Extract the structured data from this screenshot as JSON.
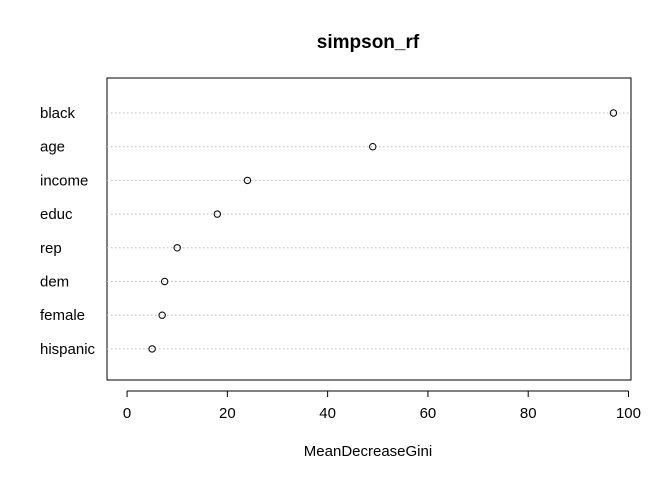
{
  "chart_data": {
    "type": "scatter",
    "title": "simpson_rf",
    "xlabel": "MeanDecreaseGini",
    "ylabel": "",
    "xlim": [
      -4,
      100.5
    ],
    "xticks": [
      0,
      20,
      40,
      60,
      80,
      100
    ],
    "grid": "dotted horizontal lines per category",
    "categories": [
      "black",
      "age",
      "income",
      "educ",
      "rep",
      "dem",
      "female",
      "hispanic"
    ],
    "values": [
      97,
      49,
      24,
      18,
      10,
      7.5,
      7,
      5
    ]
  }
}
